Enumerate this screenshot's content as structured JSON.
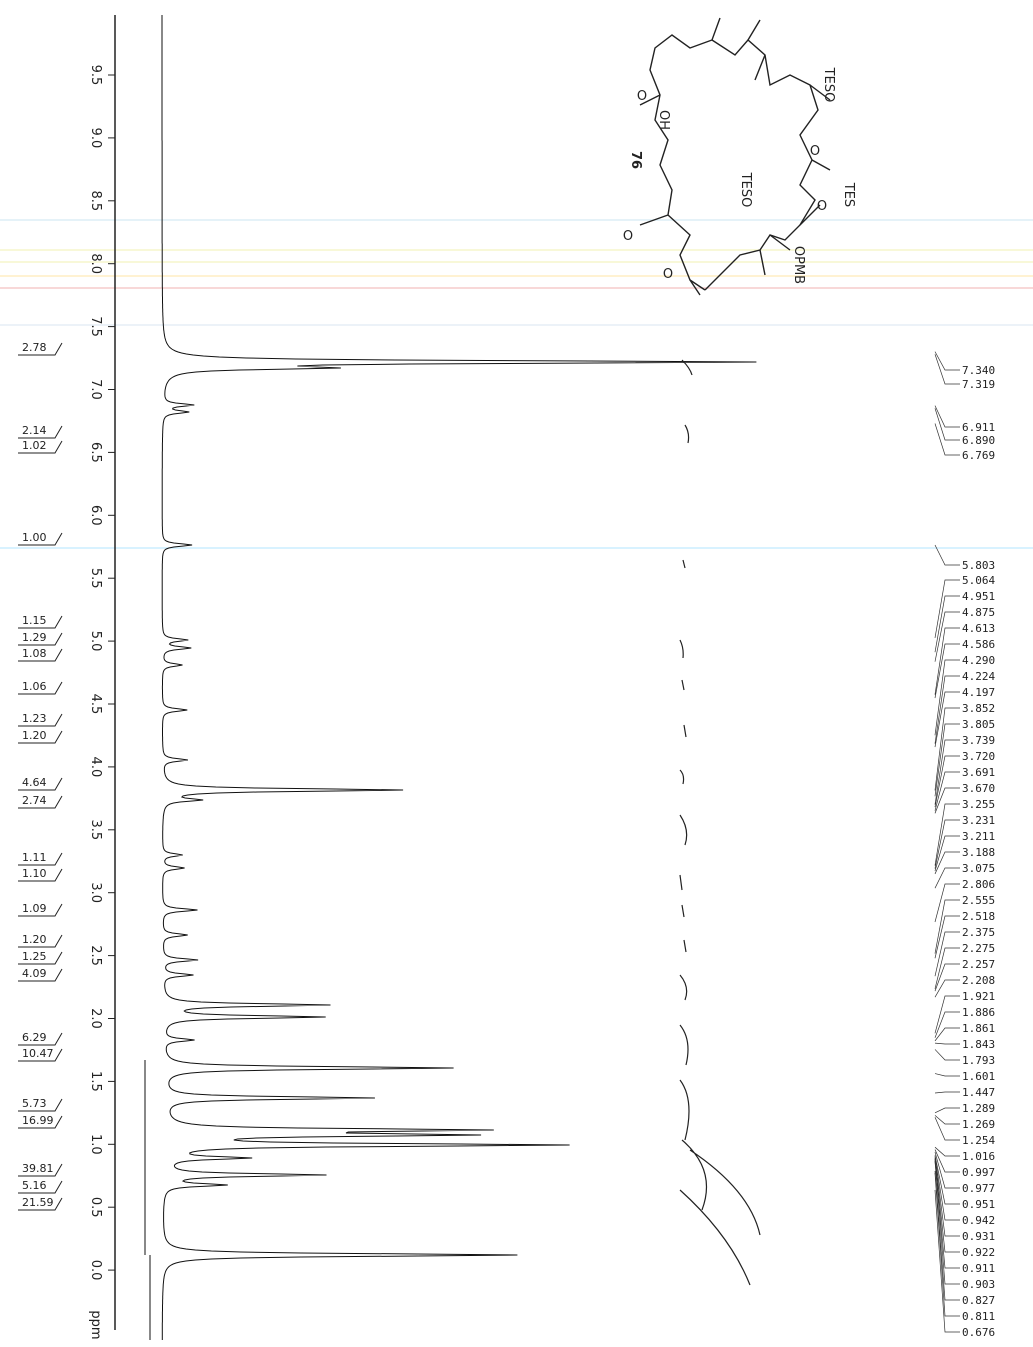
{
  "axis": {
    "ticks": [
      "9.5",
      "9.0",
      "8.5",
      "8.0",
      "7.5",
      "7.0",
      "6.5",
      "6.0",
      "5.5",
      "5.0",
      "4.5",
      "4.0",
      "3.5",
      "3.0",
      "2.5",
      "2.0",
      "1.5",
      "1.0",
      "0.5",
      "0.0"
    ],
    "unit": "ppm"
  },
  "integrals": [
    "2.78",
    "2.14",
    "1.02",
    "1.00",
    "1.15",
    "1.29",
    "1.08",
    "1.06",
    "1.23",
    "1.20",
    "4.64",
    "2.74",
    "1.11",
    "1.10",
    "1.09",
    "1.20",
    "1.25",
    "4.09",
    "6.29",
    "10.47",
    "5.73",
    "16.99",
    "39.81",
    "5.16",
    "21.59"
  ],
  "peaks": [
    "7.340",
    "7.319",
    "6.911",
    "6.890",
    "6.769",
    "5.803",
    "5.064",
    "4.951",
    "4.875",
    "4.613",
    "4.586",
    "4.290",
    "4.224",
    "4.197",
    "3.852",
    "3.805",
    "3.739",
    "3.720",
    "3.691",
    "3.670",
    "3.255",
    "3.231",
    "3.211",
    "3.188",
    "3.075",
    "2.806",
    "2.555",
    "2.518",
    "2.375",
    "2.275",
    "2.257",
    "2.208",
    "1.921",
    "1.886",
    "1.861",
    "1.843",
    "1.793",
    "1.601",
    "1.447",
    "1.289",
    "1.269",
    "1.254",
    "1.016",
    "0.997",
    "0.977",
    "0.951",
    "0.942",
    "0.931",
    "0.922",
    "0.911",
    "0.903",
    "0.827",
    "0.811",
    "0.676"
  ],
  "structure": {
    "compound": "76",
    "labels": [
      "TESO",
      "O",
      "TES",
      "TESO",
      "O",
      "OPMB",
      "OH",
      "O",
      "O",
      "O"
    ]
  }
}
